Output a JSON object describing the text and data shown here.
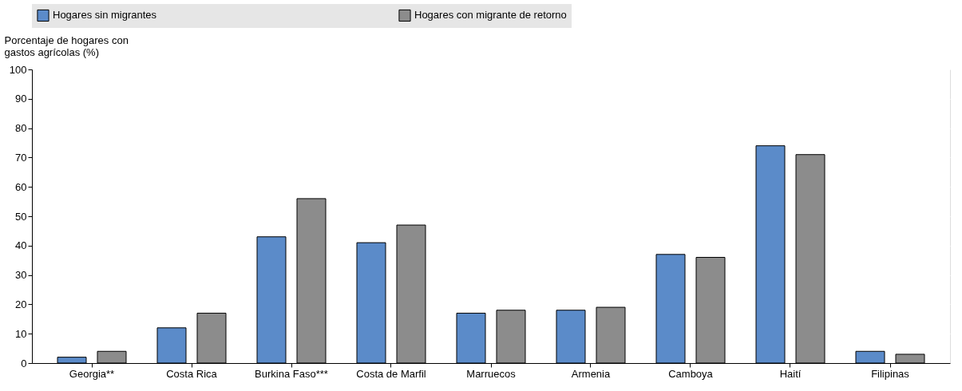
{
  "chart_data": {
    "type": "bar",
    "ylabel": "Porcentaje de hogares con gastos agrícolas (%)",
    "categories": [
      "Georgia**",
      "Costa Rica",
      "Burkina Faso***",
      "Costa de Marfil",
      "Marruecos",
      "Armenia",
      "Camboya",
      "Haití",
      "Filipinas"
    ],
    "series": [
      {
        "name": "Hogares sin migrantes",
        "color": "#5b8bc9",
        "values": [
          2,
          12,
          43,
          41,
          17,
          18,
          37,
          74,
          4
        ]
      },
      {
        "name": "Hogares con migrante de retorno",
        "color": "#8c8c8c",
        "values": [
          4,
          17,
          56,
          47,
          18,
          19,
          36,
          71,
          3
        ]
      }
    ],
    "ylim": [
      0,
      100
    ],
    "yticks": [
      0,
      10,
      20,
      30,
      40,
      50,
      60,
      70,
      80,
      90,
      100
    ],
    "grid": "y",
    "legend": "top"
  }
}
